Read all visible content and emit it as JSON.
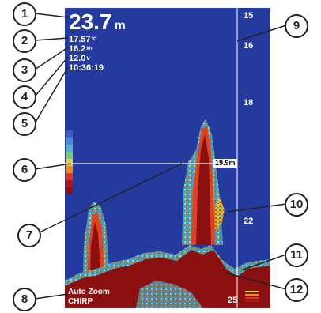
{
  "readouts": {
    "depth_value": "23.7",
    "depth_unit": "m",
    "temperature": "17.57",
    "temperature_unit": "°C",
    "speed": "16.2",
    "speed_unit": "kh",
    "voltage": "12.0",
    "voltage_unit": "v",
    "time": "10:36:19"
  },
  "depth_scale": {
    "labels": [
      "15",
      "16",
      "18",
      "22",
      "25"
    ]
  },
  "depth_line": {
    "label": "19.9m"
  },
  "mode": {
    "zoom_label": "Auto Zoom",
    "transducer_label": "CHIRP"
  },
  "callouts": [
    "1",
    "2",
    "3",
    "4",
    "5",
    "6",
    "7",
    "8",
    "9",
    "10",
    "11",
    "12"
  ],
  "colors": {
    "water": "#243a9e",
    "bottom": "#8b1010",
    "callout_border": "#222222"
  },
  "color_scale": [
    "#3f5ec0",
    "#4a8ad0",
    "#55b0c8",
    "#7acb7a",
    "#e6d23a",
    "#f08a20",
    "#e2351a",
    "#b51212",
    "#8b1010"
  ]
}
